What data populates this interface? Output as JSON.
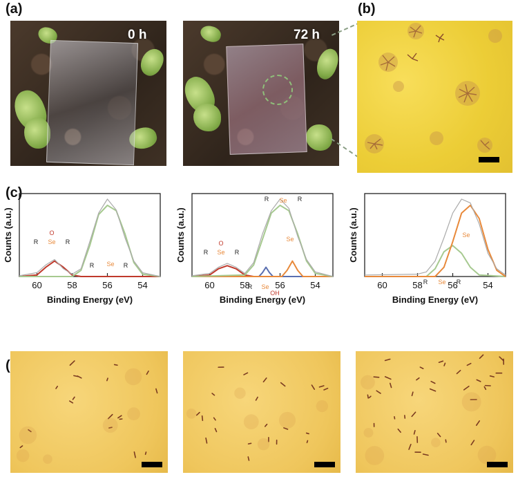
{
  "panels": {
    "a": "(a)",
    "b": "(b)",
    "c": "(c)",
    "d": "(d)"
  },
  "photos": {
    "t0": "0 h",
    "t72": "72 h"
  },
  "xps_charts": [
    {
      "xlabel": "Binding Energy (eV)",
      "ylabel": "Counts (a.u.)",
      "xticks": [
        60,
        58,
        56,
        54
      ],
      "annotations": [
        "O",
        "Se",
        "R",
        "R",
        "Se",
        "R",
        "R"
      ]
    },
    {
      "xlabel": "Binding Energy (eV)",
      "ylabel": "Counts (a.u.)",
      "xticks": [
        60,
        58,
        56,
        54
      ],
      "annotations": [
        "O",
        "Se",
        "R",
        "R",
        "Se",
        "R",
        "R",
        "Se",
        "Se",
        "R",
        "OH"
      ]
    },
    {
      "xlabel": "Binding Energy (eV)",
      "ylabel": "Counts (a.u.)",
      "xticks": [
        60,
        58,
        56,
        54
      ],
      "annotations": [
        "Se",
        "Se",
        "R",
        "R"
      ]
    }
  ],
  "chart_data": [
    {
      "type": "line",
      "xlim": [
        61,
        53
      ],
      "series": [
        {
          "color": "#c0392b",
          "x": [
            61,
            60,
            59.5,
            59,
            58.5,
            58,
            57.5,
            57,
            53
          ],
          "y": [
            0,
            0.02,
            0.12,
            0.2,
            0.12,
            0.02,
            0,
            0,
            0
          ]
        },
        {
          "color": "#a6c98f",
          "x": [
            61,
            58,
            57.5,
            57,
            56.5,
            56,
            55.5,
            55,
            54.5,
            54,
            53
          ],
          "y": [
            0,
            0,
            0.08,
            0.4,
            0.8,
            0.92,
            0.85,
            0.55,
            0.18,
            0.03,
            0
          ]
        },
        {
          "color": "#aaaaaa",
          "x": [
            61,
            60,
            59.5,
            59,
            58.5,
            58,
            57.5,
            57,
            56.5,
            56,
            55.5,
            55,
            54.5,
            54,
            53
          ],
          "y": [
            0.01,
            0.05,
            0.15,
            0.22,
            0.1,
            0.03,
            0.1,
            0.45,
            0.82,
            1.0,
            0.86,
            0.5,
            0.2,
            0.05,
            0.0
          ]
        }
      ]
    },
    {
      "type": "line",
      "xlim": [
        61,
        53
      ],
      "series": [
        {
          "color": "#c0392b",
          "x": [
            61,
            60,
            59.5,
            59,
            58.5,
            58,
            57.5,
            53
          ],
          "y": [
            0,
            0.02,
            0.1,
            0.14,
            0.1,
            0.02,
            0,
            0
          ]
        },
        {
          "color": "#5a6fb0",
          "x": [
            61,
            57.2,
            57,
            56.8,
            56.6,
            56.4,
            53
          ],
          "y": [
            0,
            0,
            0.05,
            0.12,
            0.05,
            0,
            0
          ]
        },
        {
          "color": "#e8893a",
          "x": [
            61,
            55.9,
            55.6,
            55.3,
            55.0,
            54.7,
            53
          ],
          "y": [
            0,
            0,
            0.08,
            0.2,
            0.08,
            0,
            0
          ]
        },
        {
          "color": "#a6c98f",
          "x": [
            61,
            58,
            57.5,
            57,
            56.5,
            56,
            55.5,
            55,
            54.5,
            54,
            53
          ],
          "y": [
            0,
            0.02,
            0.15,
            0.48,
            0.82,
            0.92,
            0.85,
            0.55,
            0.2,
            0.04,
            0
          ]
        },
        {
          "color": "#aaaaaa",
          "x": [
            61,
            60,
            59.5,
            59,
            58.5,
            58,
            57.5,
            57,
            56.5,
            56,
            55.5,
            55,
            54.5,
            54,
            53
          ],
          "y": [
            0.01,
            0.04,
            0.12,
            0.17,
            0.12,
            0.04,
            0.18,
            0.55,
            0.85,
            1.0,
            0.88,
            0.52,
            0.22,
            0.06,
            0.0
          ]
        }
      ]
    },
    {
      "type": "line",
      "xlim": [
        61,
        53
      ],
      "series": [
        {
          "color": "#a6c98f",
          "x": [
            61,
            57.5,
            57,
            56.5,
            56,
            55.5,
            55,
            54.5,
            53
          ],
          "y": [
            0,
            0,
            0.1,
            0.32,
            0.4,
            0.3,
            0.12,
            0.02,
            0
          ]
        },
        {
          "color": "#e8893a",
          "x": [
            61,
            57,
            56.5,
            56,
            55.5,
            55,
            54.5,
            54,
            53.5,
            53
          ],
          "y": [
            0,
            0,
            0.12,
            0.45,
            0.82,
            0.92,
            0.75,
            0.35,
            0.08,
            0
          ]
        },
        {
          "color": "#aaaaaa",
          "x": [
            61,
            58,
            57.5,
            57,
            56.5,
            56,
            55.5,
            55,
            54.5,
            54,
            53.5,
            53
          ],
          "y": [
            0.02,
            0.03,
            0.06,
            0.2,
            0.5,
            0.82,
            1.0,
            0.95,
            0.68,
            0.3,
            0.1,
            0.02
          ]
        }
      ]
    }
  ],
  "colors": {
    "micro_bg": "#eccd36",
    "soil": "#3e2f23"
  }
}
